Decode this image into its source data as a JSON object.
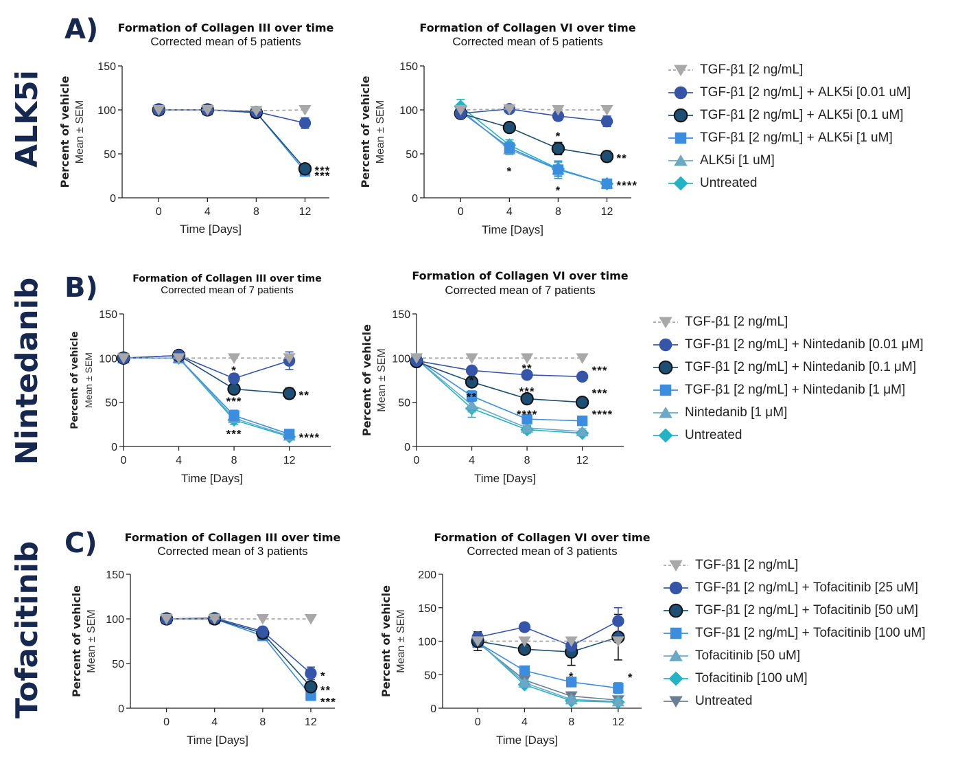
{
  "rows": [
    {
      "letter": "A)",
      "drug": "ALK5i"
    },
    {
      "letter": "B)",
      "drug": "Nintedanib"
    },
    {
      "letter": "C)",
      "drug": "Tofacitinib"
    }
  ],
  "colors": {
    "tgf": "#a8a8a8",
    "low": "#3556a8",
    "mid": "#1d4e73",
    "high": "#3b8de0",
    "drug": "#6ba8c6",
    "untreated": "#22b3c7",
    "untreated_c": "#6b7f94"
  },
  "legends": [
    {
      "items": [
        {
          "label": "TGF-β1 [2 ng/mL]",
          "marker": "triangle-down",
          "color": "#a8a8a8",
          "dashed": true
        },
        {
          "label": "TGF-β1 [2 ng/mL] + ALK5i [0.01 uM]",
          "marker": "circle",
          "color": "#3556a8"
        },
        {
          "label": "TGF-β1 [2 ng/mL] + ALK5i [0.1 uM]",
          "marker": "circle-outline",
          "color": "#1d4e73"
        },
        {
          "label": "TGF-β1 [2 ng/mL] + ALK5i [1 uM]",
          "marker": "square",
          "color": "#3b8de0"
        },
        {
          "label": "ALK5i [1 uM]",
          "marker": "triangle-up",
          "color": "#6ba8c6"
        },
        {
          "label": "Untreated",
          "marker": "diamond",
          "color": "#22b3c7"
        }
      ]
    },
    {
      "items": [
        {
          "label": "TGF-β1 [2 ng/mL]",
          "marker": "triangle-down",
          "color": "#a8a8a8",
          "dashed": true
        },
        {
          "label": "TGF-β1 [2 ng/mL] + Nintedanib [0.01 μM]",
          "marker": "circle",
          "color": "#3556a8"
        },
        {
          "label": "TGF-β1 [2 ng/mL] + Nintedanib [0.1 μM]",
          "marker": "circle-outline",
          "color": "#1d4e73"
        },
        {
          "label": "TGF-β1 [2 ng/mL] + Nintedanib [1 μM]",
          "marker": "square",
          "color": "#3b8de0"
        },
        {
          "label": "Nintedanib [1 μM]",
          "marker": "triangle-up",
          "color": "#6ba8c6"
        },
        {
          "label": "Untreated",
          "marker": "diamond",
          "color": "#22b3c7"
        }
      ]
    },
    {
      "items": [
        {
          "label": "TGF-β1 [2 ng/mL]",
          "marker": "triangle-down",
          "color": "#a8a8a8",
          "dashed": true
        },
        {
          "label": "TGF-β1 [2 ng/mL] + Tofacitinib [25 uM]",
          "marker": "circle",
          "color": "#3556a8"
        },
        {
          "label": "TGF-β1 [2 ng/mL] + Tofacitinib [50 uM]",
          "marker": "circle-outline",
          "color": "#1d4e73"
        },
        {
          "label": "TGF-β1 [2 ng/mL] + Tofacitinib [100 uM]",
          "marker": "square",
          "color": "#3b8de0"
        },
        {
          "label": "Tofacitinib [50 uM]",
          "marker": "triangle-up",
          "color": "#6ba8c6"
        },
        {
          "label": "Tofacitinib [100 uM]",
          "marker": "diamond",
          "color": "#22b3c7"
        },
        {
          "label": "Untreated",
          "marker": "triangle-down",
          "color": "#6b7f94"
        }
      ]
    }
  ],
  "chart_data": [
    {
      "id": "A-col3",
      "type": "line",
      "title": "Formation of Collagen III over time",
      "subtitle": "Corrected mean of 5 patients",
      "xlabel": "Time [Days]",
      "ylabel": "Percent of vehicle",
      "ylabel2": "Mean ± SEM",
      "x": [
        0,
        4,
        8,
        12
      ],
      "xlim": [
        -3,
        14
      ],
      "ylim": [
        0,
        150
      ],
      "yticks": [
        0,
        50,
        100,
        150
      ],
      "series": [
        {
          "name": "TGF-β1 [2 ng/mL]",
          "values": [
            100,
            100,
            99,
            100
          ],
          "err": [
            0,
            0,
            0,
            0
          ]
        },
        {
          "name": "TGF-β1 [2 ng/mL] + ALK5i [0.01 uM]",
          "values": [
            100,
            100,
            98,
            85
          ],
          "err": [
            1,
            1,
            1,
            6
          ]
        },
        {
          "name": "TGF-β1 [2 ng/mL] + ALK5i [0.1 uM]",
          "values": [
            100,
            100,
            97,
            33
          ],
          "err": [
            1,
            1,
            1,
            4
          ]
        },
        {
          "name": "TGF-β1 [2 ng/mL] + ALK5i [1 uM]",
          "values": [
            100,
            100,
            97,
            30
          ],
          "err": [
            1,
            1,
            1,
            3
          ]
        }
      ],
      "annotations": [
        {
          "x": 12,
          "y": 33,
          "text": "***"
        },
        {
          "x": 12,
          "y": 27,
          "text": "***"
        }
      ]
    },
    {
      "id": "A-col6",
      "type": "line",
      "title": "Formation of Collagen VI over time",
      "subtitle": "Corrected mean of 5 patients",
      "xlabel": "Time [Days]",
      "ylabel": "Percent of vehicle",
      "ylabel2": "Mean ± SEM",
      "x": [
        0,
        4,
        8,
        12
      ],
      "xlim": [
        -3,
        14
      ],
      "ylim": [
        0,
        150
      ],
      "yticks": [
        0,
        50,
        100,
        150
      ],
      "series": [
        {
          "name": "TGF-β1 [2 ng/mL]",
          "values": [
            100,
            101,
            100,
            100
          ],
          "err": [
            0,
            0,
            0,
            0
          ]
        },
        {
          "name": "TGF-β1 [2 ng/mL] + ALK5i [0.01 uM]",
          "values": [
            96,
            101,
            93,
            87
          ],
          "err": [
            3,
            4,
            5,
            6
          ]
        },
        {
          "name": "TGF-β1 [2 ng/mL] + ALK5i [0.1 uM]",
          "values": [
            96,
            80,
            56,
            47
          ],
          "err": [
            3,
            5,
            7,
            6
          ]
        },
        {
          "name": "TGF-β1 [2 ng/mL] + ALK5i [1 uM]",
          "values": [
            98,
            57,
            32,
            16
          ],
          "err": [
            3,
            6,
            10,
            2
          ]
        },
        {
          "name": "ALK5i [1 uM]",
          "values": [
            100,
            55,
            32,
            16
          ],
          "err": [
            5,
            6,
            8,
            2
          ]
        },
        {
          "name": "Untreated",
          "values": [
            104,
            60,
            33,
            16
          ],
          "err": [
            8,
            6,
            8,
            2
          ]
        }
      ],
      "annotations": [
        {
          "x": 4,
          "y": 32,
          "text": "*"
        },
        {
          "x": 8,
          "y": 72,
          "text": "*"
        },
        {
          "x": 8,
          "y": 10,
          "text": "*"
        },
        {
          "x": 12,
          "y": 47,
          "text": "**"
        },
        {
          "x": 12,
          "y": 16,
          "text": "****"
        }
      ]
    },
    {
      "id": "B-col3",
      "type": "line",
      "title": "Formation of Collagen III over time",
      "subtitle": "Corrected mean of 7 patients",
      "xlabel": "Time [Days]",
      "ylabel": "Percent of vehicle",
      "ylabel2": "Mean ± SEM",
      "x": [
        0,
        4,
        8,
        12
      ],
      "xlim": [
        0,
        15
      ],
      "ylim": [
        0,
        150
      ],
      "yticks": [
        0,
        50,
        100,
        150
      ],
      "series": [
        {
          "name": "TGF-β1 [2 ng/mL]",
          "values": [
            100,
            100,
            100,
            100
          ],
          "err": [
            0,
            0,
            0,
            0
          ]
        },
        {
          "name": "TGF-β1 [2 ng/mL] + Nintedanib [0.01 μM]",
          "values": [
            100,
            103,
            77,
            97
          ],
          "err": [
            1,
            2,
            5,
            10
          ]
        },
        {
          "name": "TGF-β1 [2 ng/mL] + Nintedanib [0.1 μM]",
          "values": [
            100,
            103,
            65,
            60
          ],
          "err": [
            1,
            2,
            4,
            6
          ]
        },
        {
          "name": "TGF-β1 [2 ng/mL] + Nintedanib [1 μM]",
          "values": [
            100,
            100,
            35,
            14
          ],
          "err": [
            1,
            2,
            6,
            3
          ]
        },
        {
          "name": "Nintedanib [1 μM]",
          "values": [
            100,
            100,
            32,
            12
          ],
          "err": [
            1,
            2,
            5,
            3
          ]
        },
        {
          "name": "Untreated",
          "values": [
            100,
            100,
            30,
            11
          ],
          "err": [
            1,
            2,
            5,
            3
          ]
        }
      ],
      "annotations": [
        {
          "x": 8,
          "y": 88,
          "text": "*"
        },
        {
          "x": 8,
          "y": 53,
          "text": "***"
        },
        {
          "x": 8,
          "y": 16,
          "text": "***"
        },
        {
          "x": 12,
          "y": 60,
          "text": "**"
        },
        {
          "x": 12,
          "y": 12,
          "text": "****"
        }
      ]
    },
    {
      "id": "B-col6",
      "type": "line",
      "title": "Formation of Collagen VI over time",
      "subtitle": "Corrected mean of 7 patients",
      "xlabel": "Time [Days]",
      "ylabel": "Percent of vehicle",
      "ylabel2": "Mean ± SEM",
      "x": [
        0,
        4,
        8,
        12
      ],
      "xlim": [
        0,
        15
      ],
      "ylim": [
        0,
        150
      ],
      "yticks": [
        0,
        50,
        100,
        150
      ],
      "series": [
        {
          "name": "TGF-β1 [2 ng/mL]",
          "values": [
            100,
            100,
            100,
            100
          ],
          "err": [
            0,
            0,
            0,
            0
          ]
        },
        {
          "name": "TGF-β1 [2 ng/mL] + Nintedanib [0.01 μM]",
          "values": [
            97,
            86,
            81,
            79
          ],
          "err": [
            2,
            4,
            2,
            3
          ]
        },
        {
          "name": "TGF-β1 [2 ng/mL] + Nintedanib [0.1 μM]",
          "values": [
            96,
            73,
            54,
            50
          ],
          "err": [
            2,
            5,
            4,
            4
          ]
        },
        {
          "name": "TGF-β1 [2 ng/mL] + Nintedanib [1 μM]",
          "values": [
            99,
            57,
            31,
            29
          ],
          "err": [
            2,
            6,
            4,
            4
          ]
        },
        {
          "name": "Nintedanib [1 μM]",
          "values": [
            99,
            47,
            21,
            17
          ],
          "err": [
            2,
            8,
            3,
            3
          ]
        },
        {
          "name": "Untreated",
          "values": [
            99,
            43,
            19,
            15
          ],
          "err": [
            2,
            10,
            4,
            3
          ]
        }
      ],
      "annotations": [
        {
          "x": 4,
          "y": 77,
          "text": "*"
        },
        {
          "x": 4,
          "y": 58,
          "text": "**"
        },
        {
          "x": 8,
          "y": 90,
          "text": "**"
        },
        {
          "x": 8,
          "y": 64,
          "text": "***"
        },
        {
          "x": 8,
          "y": 38,
          "text": "****"
        },
        {
          "x": 12,
          "y": 88,
          "text": "***"
        },
        {
          "x": 12,
          "y": 62,
          "text": "***"
        },
        {
          "x": 12,
          "y": 38,
          "text": "****"
        }
      ]
    },
    {
      "id": "C-col3",
      "type": "line",
      "title": "Formation of Collagen III over time",
      "subtitle": "Corrected mean of 3 patients",
      "xlabel": "Time [Days]",
      "ylabel": "Percent of vehicle",
      "ylabel2": "Mean ± SEM",
      "x": [
        0,
        4,
        8,
        12
      ],
      "xlim": [
        -3,
        14
      ],
      "ylim": [
        0,
        150
      ],
      "yticks": [
        0,
        50,
        100,
        150
      ],
      "series": [
        {
          "name": "TGF-β1 [2 ng/mL]",
          "values": [
            100,
            100,
            100,
            100
          ],
          "err": [
            0,
            0,
            0,
            0
          ]
        },
        {
          "name": "TGF-β1 [2 ng/mL] + Tofacitinib [25 uM]",
          "values": [
            100,
            101,
            86,
            39
          ],
          "err": [
            1,
            1,
            4,
            7
          ]
        },
        {
          "name": "TGF-β1 [2 ng/mL] + Tofacitinib [50 uM]",
          "values": [
            100,
            100,
            84,
            24
          ],
          "err": [
            1,
            1,
            4,
            3
          ]
        },
        {
          "name": "TGF-β1 [2 ng/mL] + Tofacitinib [100 uM]",
          "values": [
            100,
            100,
            81,
            14
          ],
          "err": [
            1,
            1,
            5,
            2
          ]
        }
      ],
      "annotations": [
        {
          "x": 12,
          "y": 38,
          "text": "*"
        },
        {
          "x": 12,
          "y": 22,
          "text": "**"
        },
        {
          "x": 12,
          "y": 9,
          "text": "***"
        }
      ]
    },
    {
      "id": "C-col6",
      "type": "line",
      "title": "Formation of Collagen VI over time",
      "subtitle": "Corrected mean of 3 patients",
      "xlabel": "Time [Days]",
      "ylabel": "Percent of vehicle",
      "ylabel2": "Mean ± SEM",
      "x": [
        0,
        4,
        8,
        12
      ],
      "xlim": [
        -3,
        14
      ],
      "ylim": [
        0,
        200
      ],
      "yticks": [
        0,
        50,
        100,
        150,
        200
      ],
      "series": [
        {
          "name": "TGF-β1 [2 ng/mL]",
          "values": [
            100,
            100,
            100,
            100
          ],
          "err": [
            0,
            0,
            0,
            0
          ]
        },
        {
          "name": "TGF-β1 [2 ng/mL] + Tofacitinib [25 uM]",
          "values": [
            106,
            121,
            93,
            130
          ],
          "err": [
            6,
            6,
            6,
            20
          ]
        },
        {
          "name": "TGF-β1 [2 ng/mL] + Tofacitinib [50 uM]",
          "values": [
            100,
            88,
            84,
            106
          ],
          "err": [
            14,
            5,
            20,
            34
          ]
        },
        {
          "name": "TGF-β1 [2 ng/mL] + Tofacitinib [100 uM]",
          "values": [
            98,
            56,
            39,
            30
          ],
          "err": [
            7,
            6,
            4,
            8
          ]
        },
        {
          "name": "Tofacitinib [50 uM]",
          "values": [
            100,
            38,
            13,
            10
          ],
          "err": [
            5,
            4,
            3,
            3
          ]
        },
        {
          "name": "Tofacitinib [100 uM]",
          "values": [
            100,
            35,
            11,
            9
          ],
          "err": [
            5,
            4,
            3,
            3
          ]
        },
        {
          "name": "Untreated",
          "values": [
            98,
            42,
            18,
            12
          ],
          "err": [
            5,
            4,
            3,
            3
          ]
        }
      ],
      "annotations": [
        {
          "x": 8,
          "y": 50,
          "text": "*"
        },
        {
          "x": 12,
          "y": 48,
          "text": "*"
        }
      ]
    }
  ]
}
